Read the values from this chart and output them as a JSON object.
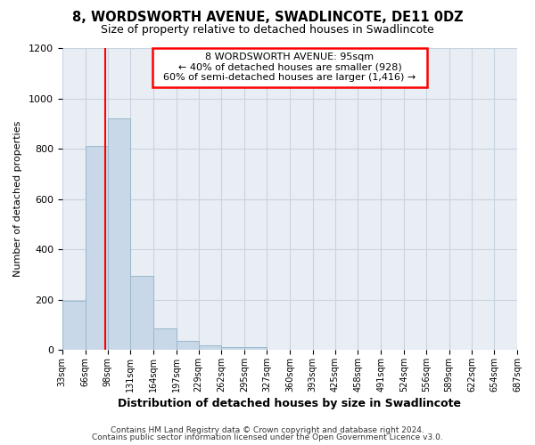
{
  "title": "8, WORDSWORTH AVENUE, SWADLINCOTE, DE11 0DZ",
  "subtitle": "Size of property relative to detached houses in Swadlincote",
  "xlabel": "Distribution of detached houses by size in Swadlincote",
  "ylabel": "Number of detached properties",
  "footer_line1": "Contains HM Land Registry data © Crown copyright and database right 2024.",
  "footer_line2": "Contains public sector information licensed under the Open Government Licence v3.0.",
  "bin_edges": [
    33,
    66,
    98,
    131,
    164,
    197,
    229,
    262,
    295,
    327,
    360,
    393,
    425,
    458,
    491,
    524,
    556,
    589,
    622,
    654,
    687
  ],
  "bar_heights": [
    195,
    810,
    920,
    295,
    85,
    35,
    18,
    10,
    10,
    0,
    0,
    0,
    0,
    0,
    0,
    0,
    0,
    0,
    0,
    0
  ],
  "bar_color": "#c8d8e8",
  "bar_edge_color": "#99b8cc",
  "red_line_x": 95,
  "ylim": [
    0,
    1200
  ],
  "yticks": [
    0,
    200,
    400,
    600,
    800,
    1000,
    1200
  ],
  "xtick_labels": [
    "33sqm",
    "66sqm",
    "98sqm",
    "131sqm",
    "164sqm",
    "197sqm",
    "229sqm",
    "262sqm",
    "295sqm",
    "327sqm",
    "360sqm",
    "393sqm",
    "425sqm",
    "458sqm",
    "491sqm",
    "524sqm",
    "556sqm",
    "589sqm",
    "622sqm",
    "654sqm",
    "687sqm"
  ],
  "annotation_title": "8 WORDSWORTH AVENUE: 95sqm",
  "annotation_line1": "← 40% of detached houses are smaller (928)",
  "annotation_line2": "60% of semi-detached houses are larger (1,416) →",
  "grid_color": "#c8d4e0",
  "bg_color": "#ffffff",
  "plot_bg_color": "#e8eef4"
}
